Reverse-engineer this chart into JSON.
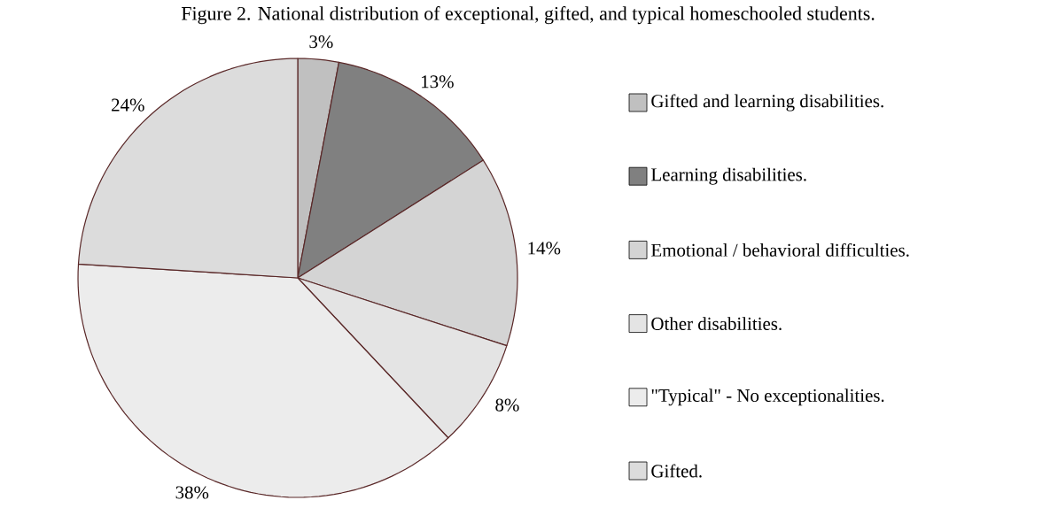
{
  "chart_data": {
    "type": "pie",
    "title": "Figure 2. National distribution of exceptional, gifted, and typical homeschooled students.",
    "categories": [
      "Gifted and learning disabilities.",
      "Learning disabilities.",
      "Emotional / behavioral difficulties.",
      "Other disabilities.",
      "\"Typical\" - No exceptionalities.",
      "Gifted."
    ],
    "values": [
      3,
      13,
      14,
      8,
      38,
      24
    ],
    "value_labels": [
      "3%",
      "13%",
      "14%",
      "8%",
      "38%",
      "24%"
    ],
    "colors": [
      "#c0c0c0",
      "#808080",
      "#d4d4d4",
      "#e4e4e4",
      "#ececec",
      "#dcdcdc"
    ],
    "legend": "right"
  }
}
